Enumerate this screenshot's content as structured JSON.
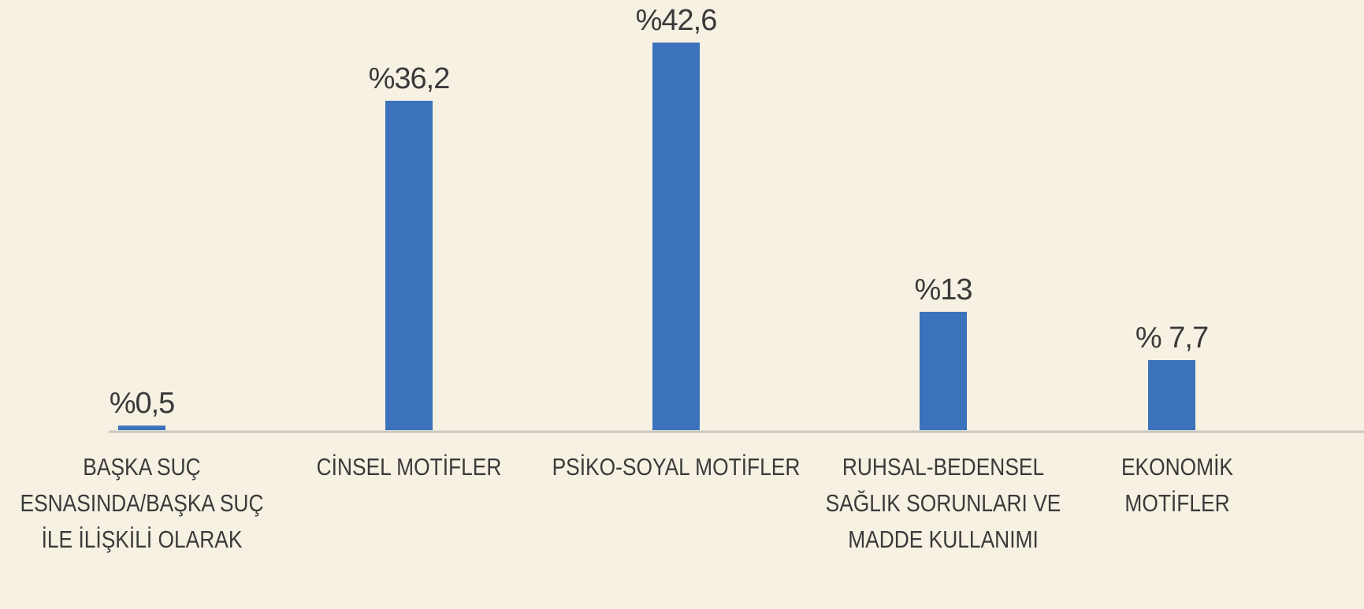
{
  "chart_data": {
    "type": "bar",
    "categories": [
      "BAŞKA SUÇ ESNASINDA/BAŞKA SUÇ İLE İLİŞKİLİ OLARAK",
      "CİNSEL MOTİFLER",
      "PSİKO-SOYAL MOTİFLER",
      "RUHSAL-BEDENSEL SAĞLIK SORUNLARI VE MADDE KULLANIMI",
      "EKONOMİK MOTİFLER"
    ],
    "values": [
      0.5,
      36.2,
      42.6,
      13,
      7.7
    ],
    "value_labels": [
      "%0,5",
      "%36,2",
      "%42,6",
      "%13",
      "% 7,7"
    ],
    "color": "#3b72bb"
  }
}
